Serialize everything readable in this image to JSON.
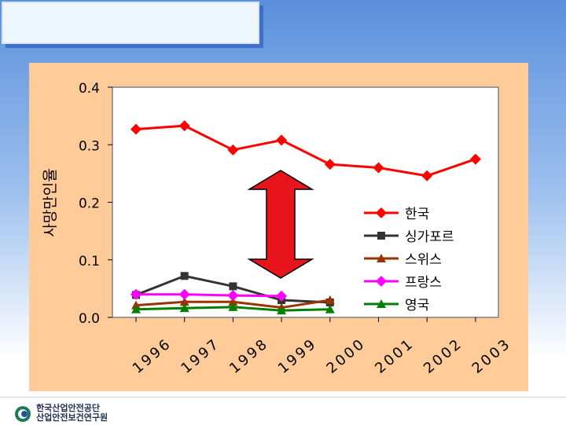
{
  "footer": {
    "org_line1": "한국산업안전공단",
    "org_line2": "산업안전보건연구원"
  },
  "colors": {
    "panel_bg": "#ffcc99",
    "arrow": "#e8141b"
  },
  "chart_data": {
    "type": "line",
    "title": "",
    "xlabel": "",
    "ylabel": "사망만인율",
    "categories": [
      "1996",
      "1997",
      "1998",
      "1999",
      "2000",
      "2001",
      "2002",
      "2003"
    ],
    "ylim": [
      0.0,
      0.4
    ],
    "yticks": [
      "0.0",
      "0.1",
      "0.2",
      "0.3",
      "0.4"
    ],
    "grid": false,
    "legend_position": "right",
    "series": [
      {
        "name": "한국",
        "color": "#ff0000",
        "marker": "diamond",
        "values": [
          0.327,
          0.333,
          0.291,
          0.308,
          0.266,
          0.26,
          0.246,
          0.275
        ]
      },
      {
        "name": "싱가포르",
        "color": "#333333",
        "marker": "square",
        "values": [
          0.039,
          0.072,
          0.054,
          0.03,
          0.026,
          null,
          null,
          null
        ]
      },
      {
        "name": "스위스",
        "color": "#993300",
        "marker": "triangle",
        "values": [
          0.021,
          0.027,
          0.027,
          0.017,
          0.03,
          null,
          null,
          null
        ]
      },
      {
        "name": "프랑스",
        "color": "#ff00ff",
        "marker": "diamond",
        "values": [
          0.04,
          0.04,
          0.038,
          0.037,
          null,
          null,
          null,
          null
        ]
      },
      {
        "name": "영국",
        "color": "#008000",
        "marker": "triangle",
        "values": [
          0.014,
          0.016,
          0.018,
          0.012,
          0.014,
          null,
          null,
          null
        ]
      }
    ]
  }
}
